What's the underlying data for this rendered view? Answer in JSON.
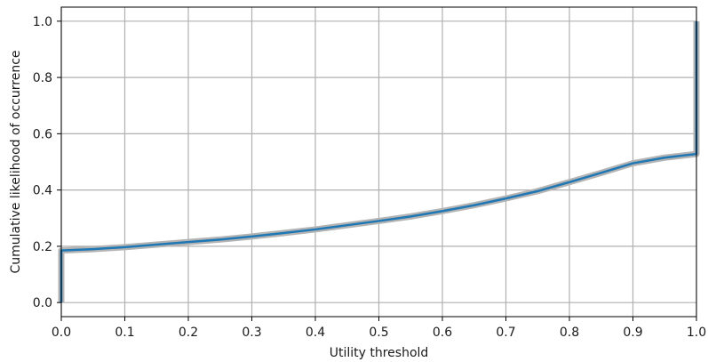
{
  "chart_data": {
    "type": "line",
    "title": "",
    "xlabel": "Utility threshold",
    "ylabel": "Cumulative likelihood of occurrence",
    "xlim": [
      0.0,
      1.0
    ],
    "ylim": [
      -0.05,
      1.05
    ],
    "xticks": [
      "0.0",
      "0.1",
      "0.2",
      "0.3",
      "0.4",
      "0.5",
      "0.6",
      "0.7",
      "0.8",
      "0.9",
      "1.0"
    ],
    "yticks": [
      "0.0",
      "0.2",
      "0.4",
      "0.6",
      "0.8",
      "1.0"
    ],
    "grid": true,
    "legend": "none",
    "colors": {
      "line": "#1f77b4",
      "band": "#b4b4b4",
      "grid": "#b0b0b0",
      "axes": "#000000"
    },
    "series": [
      {
        "x": [
          0.0,
          0.0,
          0.05,
          0.1,
          0.15,
          0.2,
          0.25,
          0.3,
          0.35,
          0.4,
          0.45,
          0.5,
          0.55,
          0.6,
          0.65,
          0.7,
          0.75,
          0.8,
          0.85,
          0.9,
          0.95,
          1.0,
          1.0
        ],
        "y": [
          0.0,
          0.185,
          0.19,
          0.197,
          0.206,
          0.215,
          0.224,
          0.235,
          0.247,
          0.26,
          0.275,
          0.29,
          0.306,
          0.325,
          0.346,
          0.37,
          0.396,
          0.428,
          0.461,
          0.495,
          0.515,
          0.528,
          1.0
        ]
      }
    ]
  }
}
